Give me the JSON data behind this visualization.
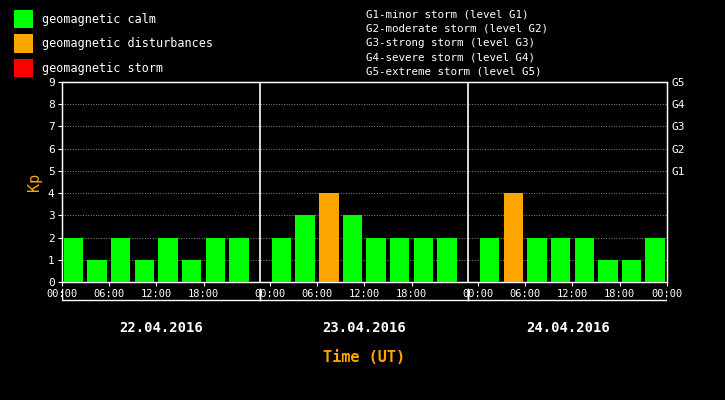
{
  "background_color": "#000000",
  "plot_bg_color": "#000000",
  "bar_values": [
    2,
    1,
    2,
    1,
    2,
    1,
    2,
    2,
    2,
    3,
    4,
    3,
    2,
    2,
    2,
    2,
    2,
    4,
    2,
    2,
    2,
    1,
    1,
    2
  ],
  "bar_colors": [
    "#00ff00",
    "#00ff00",
    "#00ff00",
    "#00ff00",
    "#00ff00",
    "#00ff00",
    "#00ff00",
    "#00ff00",
    "#00ff00",
    "#00ff00",
    "#ffa500",
    "#00ff00",
    "#00ff00",
    "#00ff00",
    "#00ff00",
    "#00ff00",
    "#00ff00",
    "#ffa500",
    "#00ff00",
    "#00ff00",
    "#00ff00",
    "#00ff00",
    "#00ff00",
    "#00ff00"
  ],
  "ylim": [
    0,
    9
  ],
  "yticks": [
    0,
    1,
    2,
    3,
    4,
    5,
    6,
    7,
    8,
    9
  ],
  "ylabel": "Kp",
  "ylabel_color": "#ffa500",
  "xlabel": "Time (UT)",
  "xlabel_color": "#ffa500",
  "grid_color": "#ffffff",
  "tick_color": "#ffffff",
  "axis_color": "#ffffff",
  "days": [
    "22.04.2016",
    "23.04.2016",
    "24.04.2016"
  ],
  "right_ytick_positions": [
    5,
    6,
    7,
    8,
    9
  ],
  "right_ytick_texts": [
    "G1",
    "G2",
    "G3",
    "G4",
    "G5"
  ],
  "legend_items": [
    {
      "color": "#00ff00",
      "label": "geomagnetic calm"
    },
    {
      "color": "#ffa500",
      "label": "geomagnetic disturbances"
    },
    {
      "color": "#ff0000",
      "label": "geomagnetic storm"
    }
  ],
  "right_legend_lines": [
    "G1-minor storm (level G1)",
    "G2-moderate storm (level G2)",
    "G3-strong storm (level G3)",
    "G4-severe storm (level G4)",
    "G5-extreme storm (level G5)"
  ],
  "font_size": 8,
  "monospace_font": "DejaVu Sans Mono"
}
